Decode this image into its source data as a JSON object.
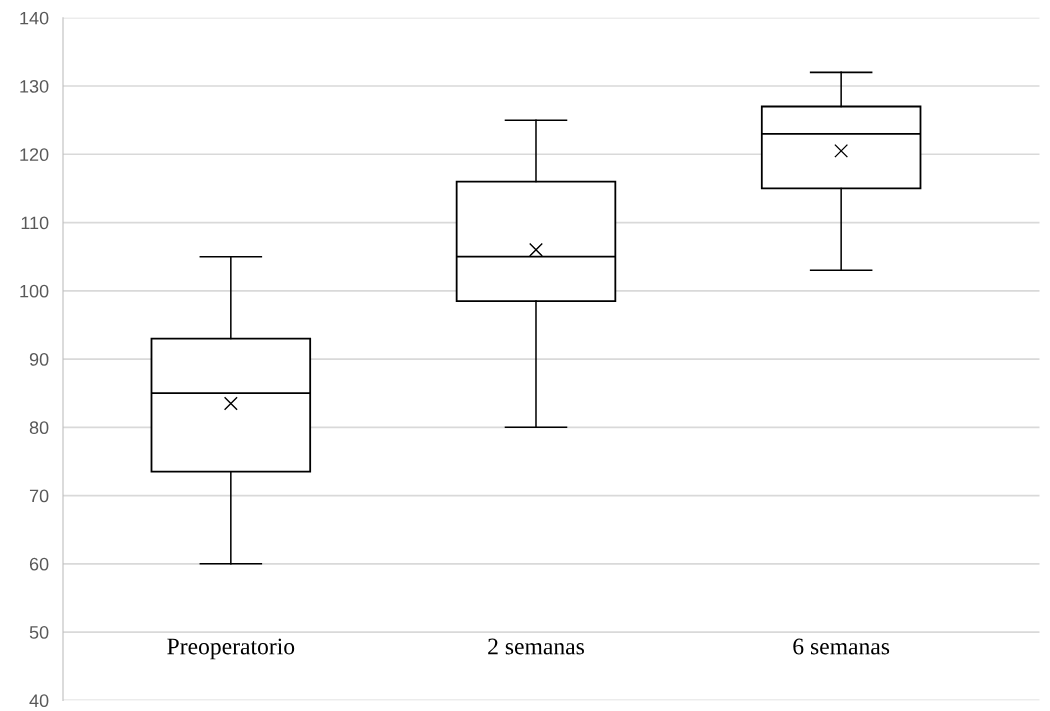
{
  "chart_data": {
    "type": "box",
    "categories": [
      "Preoperatorio",
      "2 semanas",
      "6 semanas"
    ],
    "boxes": [
      {
        "low": 60,
        "q1": 73.5,
        "median": 85,
        "q3": 93,
        "high": 105,
        "mean": 83.5
      },
      {
        "low": 80,
        "q1": 98.5,
        "median": 105,
        "q3": 116,
        "high": 125,
        "mean": 106
      },
      {
        "low": 103,
        "q1": 115,
        "median": 123,
        "q3": 127,
        "high": 132,
        "mean": 120.5
      }
    ],
    "color": "#000000",
    "ylim": [
      40,
      140
    ],
    "yticks": [
      40,
      50,
      60,
      70,
      80,
      90,
      100,
      110,
      120,
      130,
      140
    ],
    "grid": "y",
    "legend": false
  }
}
